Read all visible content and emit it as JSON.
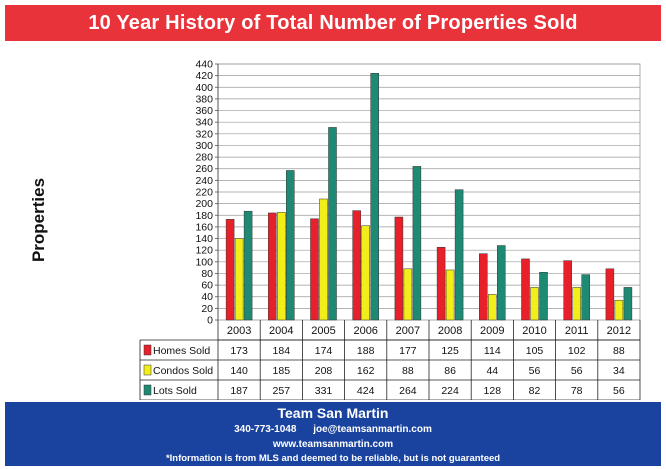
{
  "header": {
    "title": "10 Year History of Total Number of Properties Sold"
  },
  "footer": {
    "name": "Team San Martin",
    "phone": "340-773-1048",
    "email": "joe@teamsanmartin.com",
    "website": "www.teamsanmartin.com",
    "disclaimer": "*Information is from MLS and deemed to be reliable, but is not guaranteed"
  },
  "chart_data": {
    "type": "bar",
    "title": "10 Year History of Total Number of Properties Sold",
    "xlabel": "",
    "ylabel": "Properties",
    "ylim": [
      0,
      440
    ],
    "ytick_step": 20,
    "grid": true,
    "legend": "data table below chart",
    "categories": [
      "2003",
      "2004",
      "2005",
      "2006",
      "2007",
      "2008",
      "2009",
      "2010",
      "2011",
      "2012"
    ],
    "series": [
      {
        "name": "Homes Sold",
        "color": "#e8202a",
        "values": [
          173,
          184,
          174,
          188,
          177,
          125,
          114,
          105,
          102,
          88
        ]
      },
      {
        "name": "Condos Sold",
        "color": "#f2ee1a",
        "values": [
          140,
          185,
          208,
          162,
          88,
          86,
          44,
          56,
          56,
          34
        ]
      },
      {
        "name": "Lots Sold",
        "color": "#1e8a73",
        "values": [
          187,
          257,
          331,
          424,
          264,
          224,
          128,
          82,
          78,
          56
        ]
      }
    ]
  }
}
